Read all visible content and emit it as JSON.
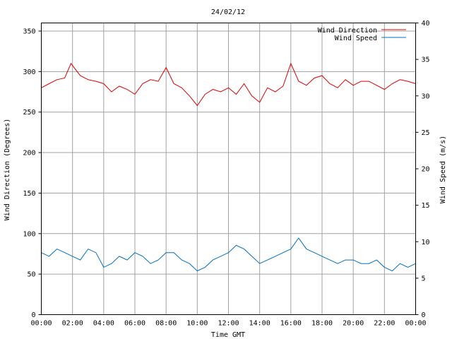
{
  "chart_data": {
    "type": "line",
    "title": "24/02/12",
    "xlabel": "Time GMT",
    "ylabel": "Wind Direction (Degrees)",
    "y2label": "Wind Speed (m/s)",
    "x_ticks": [
      "00:00",
      "02:00",
      "04:00",
      "06:00",
      "08:00",
      "10:00",
      "12:00",
      "14:00",
      "16:00",
      "18:00",
      "20:00",
      "22:00",
      "00:00"
    ],
    "y_ticks": [
      "0",
      "50",
      "100",
      "150",
      "200",
      "250",
      "300",
      "350"
    ],
    "y2_ticks": [
      "0",
      "5",
      "10",
      "15",
      "20",
      "25",
      "30",
      "35",
      "40"
    ],
    "ylim": [
      0,
      360
    ],
    "y2lim": [
      0,
      40
    ],
    "xlim_hours": [
      0,
      24
    ],
    "grid": true,
    "legend_position": "top-right",
    "series": [
      {
        "name": "Wind Direction",
        "axis": "left",
        "color": "#dd0000",
        "x_hours": [
          0,
          0.5,
          1,
          1.5,
          1.9,
          2.5,
          3,
          3.5,
          4,
          4.5,
          5,
          5.5,
          6,
          6.5,
          7,
          7.5,
          8,
          8.5,
          9,
          9.5,
          10,
          10.5,
          11,
          11.5,
          12,
          12.5,
          13,
          13.5,
          14,
          14.5,
          15,
          15.5,
          16,
          16.5,
          17,
          17.5,
          18,
          18.5,
          19,
          19.5,
          20,
          20.5,
          21,
          21.5,
          22,
          22.5,
          23,
          23.5,
          24
        ],
        "values": [
          280,
          285,
          290,
          292,
          310,
          295,
          290,
          288,
          285,
          275,
          282,
          278,
          272,
          285,
          290,
          288,
          305,
          285,
          280,
          270,
          258,
          272,
          278,
          275,
          280,
          272,
          285,
          270,
          262,
          280,
          275,
          282,
          310,
          288,
          283,
          292,
          295,
          285,
          280,
          290,
          283,
          288,
          288,
          283,
          278,
          285,
          290,
          288,
          285
        ]
      },
      {
        "name": "Wind Speed",
        "axis": "right",
        "color": "#0070c0",
        "x_hours": [
          0,
          0.5,
          1,
          1.5,
          2,
          2.5,
          3,
          3.5,
          4,
          4.5,
          5,
          5.5,
          6,
          6.5,
          7,
          7.5,
          8,
          8.5,
          9,
          9.5,
          10,
          10.5,
          11,
          11.5,
          12,
          12.5,
          13,
          13.5,
          14,
          14.5,
          15,
          15.5,
          16,
          16.5,
          17,
          17.5,
          18,
          18.5,
          19,
          19.5,
          20,
          20.5,
          21,
          21.5,
          22,
          22.5,
          23,
          23.5,
          24
        ],
        "values": [
          8.5,
          8,
          9,
          8.5,
          8,
          7.5,
          9,
          8.5,
          6.5,
          7,
          8,
          7.5,
          8.5,
          8,
          7,
          7.5,
          8.5,
          8.5,
          7.5,
          7,
          6,
          6.5,
          7.5,
          8,
          8.5,
          9.5,
          9,
          8,
          7,
          7.5,
          8,
          8.5,
          9,
          10.5,
          9,
          8.5,
          8,
          7.5,
          7,
          7.5,
          7.5,
          7,
          7,
          7.5,
          6.5,
          6,
          7,
          6.5,
          7
        ]
      }
    ]
  }
}
